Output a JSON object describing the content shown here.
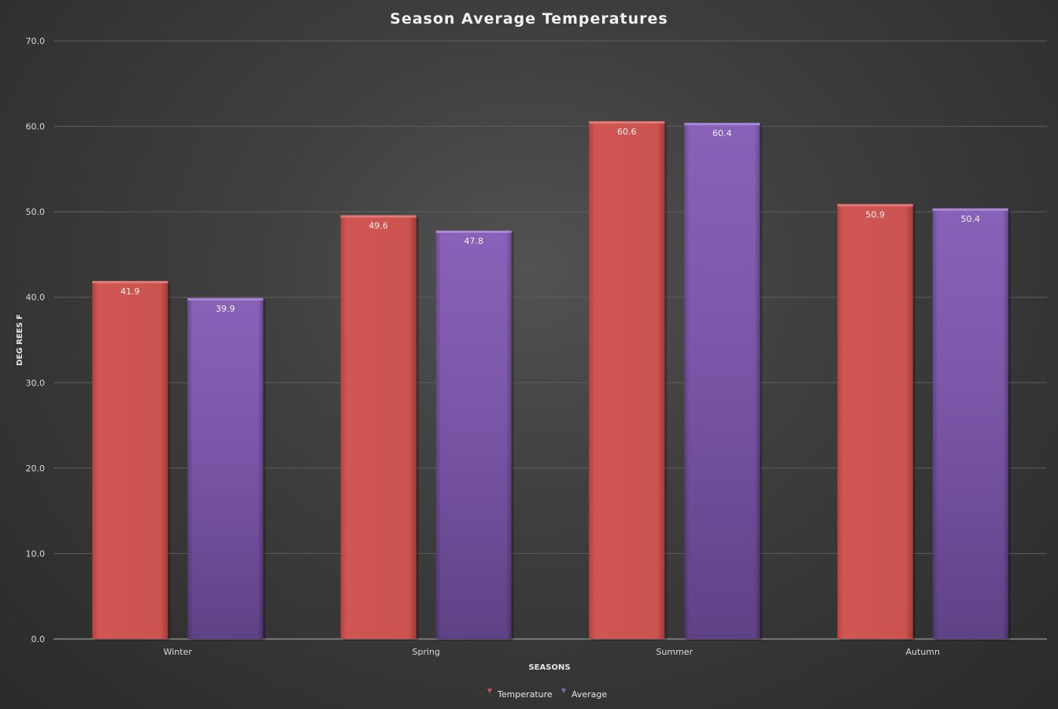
{
  "chart_data": {
    "type": "bar",
    "title": "Season Average Temperatures",
    "xlabel": "SEASONS",
    "ylabel": "DEG REES F",
    "categories": [
      "Winter",
      "Spring",
      "Summer",
      "Autumn"
    ],
    "series": [
      {
        "name": "Temperature",
        "values": [
          41.9,
          49.6,
          60.6,
          50.9
        ],
        "color": "#c9504d"
      },
      {
        "name": "Average",
        "values": [
          39.9,
          47.8,
          60.4,
          50.4
        ],
        "color": "#7b55a6"
      }
    ],
    "ylim": [
      0,
      70
    ],
    "yticks": [
      "0.0",
      "10.0",
      "20.0",
      "30.0",
      "40.0",
      "50.0",
      "60.0",
      "70.0"
    ],
    "grid": true,
    "legend": "bottom",
    "data_labels": true
  }
}
